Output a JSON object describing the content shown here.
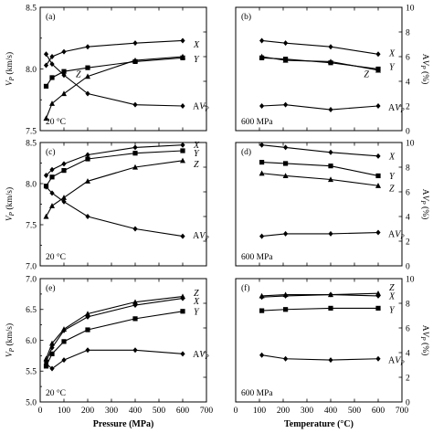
{
  "chart_data": [
    {
      "panel": "(a)",
      "type": "line",
      "note": "20 °C",
      "side": "left",
      "xlim": [
        0,
        700
      ],
      "ylim": [
        7.5,
        8.5
      ],
      "xticks": [
        0,
        100,
        200,
        300,
        400,
        500,
        600,
        700
      ],
      "xtick_labels": [],
      "yticks": [
        7.5,
        8.0,
        8.5
      ],
      "ytick_labels": [
        "7.5",
        "8.0",
        "8.5"
      ],
      "ylabel": "Vp (km/s)",
      "ylabel_sub": "P",
      "y2lim": [
        0,
        10
      ],
      "y2ticks": [
        0,
        2,
        4,
        6,
        8,
        10
      ],
      "y2tick_labels": [],
      "series": [
        {
          "name": "X",
          "marker": "diamond",
          "x": [
            25,
            50,
            100,
            200,
            400,
            600
          ],
          "y": [
            8.03,
            8.1,
            8.14,
            8.18,
            8.21,
            8.23
          ],
          "label_at": [
            8.2
          ]
        },
        {
          "name": "Y",
          "marker": "square",
          "x": [
            25,
            50,
            100,
            200,
            400,
            600
          ],
          "y": [
            7.86,
            7.93,
            7.98,
            8.01,
            8.06,
            8.09
          ],
          "label_at": [
            8.08
          ]
        },
        {
          "name": "Z",
          "marker": "triangle",
          "x": [
            25,
            50,
            100,
            200,
            400,
            600
          ],
          "y": [
            7.6,
            7.72,
            7.8,
            7.94,
            8.07,
            8.1
          ],
          "label_at": [
            7.96,
            150
          ]
        },
        {
          "name": "AVP",
          "marker": "diamond",
          "axis": "right",
          "x": [
            25,
            50,
            100,
            200,
            400,
            600
          ],
          "y": [
            6.2,
            5.4,
            4.5,
            3.0,
            2.1,
            2.0
          ],
          "label_at": [
            2.0
          ]
        }
      ]
    },
    {
      "panel": "(b)",
      "type": "line",
      "note": "600 MPa",
      "side": "right",
      "xlim": [
        0,
        700
      ],
      "ylim": [
        7.5,
        8.5
      ],
      "xticks": [
        0,
        100,
        200,
        300,
        400,
        500,
        600,
        700
      ],
      "xtick_labels": [],
      "y2lim": [
        0,
        10
      ],
      "y2ticks": [
        0,
        2,
        4,
        6,
        8,
        10
      ],
      "y2tick_labels": [
        "0",
        "2",
        "4",
        "6",
        "8",
        "10"
      ],
      "y2label": "AVp (%)",
      "series": [
        {
          "name": "X",
          "marker": "diamond",
          "x": [
            110,
            210,
            400,
            600
          ],
          "y": [
            8.23,
            8.21,
            8.18,
            8.12
          ],
          "label_at": [
            8.13
          ]
        },
        {
          "name": "Y",
          "marker": "square",
          "x": [
            110,
            210,
            400,
            600
          ],
          "y": [
            8.09,
            8.08,
            8.05,
            8.0
          ],
          "label_at": [
            8.02
          ]
        },
        {
          "name": "Z",
          "marker": "triangle",
          "x": [
            110,
            210,
            400,
            600
          ],
          "y": [
            8.1,
            8.07,
            8.06,
            7.99
          ],
          "label_at": [
            7.96,
            540
          ]
        },
        {
          "name": "AVP",
          "marker": "diamond",
          "axis": "right",
          "x": [
            110,
            210,
            400,
            600
          ],
          "y": [
            2.0,
            2.1,
            1.7,
            2.0
          ],
          "label_at": [
            1.9
          ]
        }
      ]
    },
    {
      "panel": "(c)",
      "type": "line",
      "note": "20 °C",
      "side": "left",
      "xlim": [
        0,
        700
      ],
      "ylim": [
        7.0,
        8.5
      ],
      "xticks": [
        0,
        100,
        200,
        300,
        400,
        500,
        600,
        700
      ],
      "xtick_labels": [],
      "yticks": [
        7.0,
        7.5,
        8.0,
        8.5
      ],
      "ytick_labels": [
        "7.0",
        "7.5",
        "8.0",
        "8.5"
      ],
      "ylabel": "Vp (km/s)",
      "ylabel_sub": "P",
      "y2lim": [
        0,
        10
      ],
      "y2ticks": [
        0,
        2,
        4,
        6,
        8,
        10
      ],
      "y2tick_labels": [],
      "series": [
        {
          "name": "X",
          "marker": "diamond",
          "x": [
            25,
            50,
            100,
            200,
            400,
            600
          ],
          "y": [
            8.1,
            8.17,
            8.24,
            8.35,
            8.44,
            8.47
          ],
          "label_at": [
            8.47
          ]
        },
        {
          "name": "Y",
          "marker": "square",
          "x": [
            25,
            50,
            100,
            200,
            400,
            600
          ],
          "y": [
            7.97,
            8.08,
            8.16,
            8.3,
            8.37,
            8.4
          ],
          "label_at": [
            8.37
          ]
        },
        {
          "name": "Z",
          "marker": "triangle",
          "x": [
            25,
            50,
            100,
            200,
            400,
            600
          ],
          "y": [
            7.6,
            7.73,
            7.83,
            8.03,
            8.2,
            8.28
          ],
          "label_at": [
            8.24
          ]
        },
        {
          "name": "AVP",
          "marker": "diamond",
          "axis": "right",
          "x": [
            25,
            50,
            100,
            200,
            400,
            600
          ],
          "y": [
            6.4,
            5.9,
            5.2,
            4.0,
            3.0,
            2.4
          ],
          "label_at": [
            2.5
          ]
        }
      ]
    },
    {
      "panel": "(d)",
      "type": "line",
      "note": "600 MPa",
      "side": "right",
      "xlim": [
        0,
        700
      ],
      "ylim": [
        7.0,
        8.5
      ],
      "xticks": [
        0,
        100,
        200,
        300,
        400,
        500,
        600,
        700
      ],
      "xtick_labels": [],
      "y2lim": [
        0,
        10
      ],
      "y2ticks": [
        0,
        2,
        4,
        6,
        8,
        10
      ],
      "y2tick_labels": [
        "0",
        "2",
        "4",
        "6",
        "8",
        "10"
      ],
      "y2label": "AVp (%)",
      "series": [
        {
          "name": "X",
          "marker": "diamond",
          "axis": "right",
          "x": [
            110,
            210,
            400,
            600
          ],
          "y": [
            9.8,
            9.6,
            9.2,
            8.9
          ],
          "label_at": [
            8.9
          ]
        },
        {
          "name": "Y",
          "marker": "square",
          "axis": "right",
          "x": [
            110,
            210,
            400,
            600
          ],
          "y": [
            8.4,
            8.3,
            8.1,
            7.3
          ],
          "label_at": [
            7.3
          ]
        },
        {
          "name": "Z",
          "marker": "triangle",
          "axis": "right",
          "x": [
            110,
            210,
            400,
            600
          ],
          "y": [
            7.5,
            7.3,
            7.0,
            6.5
          ],
          "label_at": [
            6.3
          ]
        },
        {
          "name": "AVP",
          "marker": "diamond",
          "axis": "right",
          "x": [
            110,
            210,
            400,
            600
          ],
          "y": [
            2.4,
            2.6,
            2.6,
            2.7
          ],
          "label_at": [
            2.6
          ]
        }
      ]
    },
    {
      "panel": "(e)",
      "type": "line",
      "note": "20 °C",
      "side": "left",
      "xlim": [
        0,
        700
      ],
      "ylim": [
        5.0,
        7.0
      ],
      "xticks": [
        0,
        100,
        200,
        300,
        400,
        500,
        600,
        700
      ],
      "xtick_labels": [
        "0",
        "100",
        "200",
        "300",
        "400",
        "500",
        "600",
        "700"
      ],
      "yticks": [
        5.0,
        5.5,
        6.0,
        6.5,
        7.0
      ],
      "ytick_labels": [
        "5.0",
        "5.5",
        "6.0",
        "6.5",
        "7.0"
      ],
      "ylabel": "Vp (km/s)",
      "ylabel_sub": "P",
      "xlabel": "Pressure (MPa)",
      "y2lim": [
        0,
        10
      ],
      "y2ticks": [
        0,
        2,
        4,
        6,
        8,
        10
      ],
      "y2tick_labels": [],
      "series": [
        {
          "name": "Z",
          "marker": "triangle",
          "x": [
            25,
            50,
            100,
            200,
            400,
            600
          ],
          "y": [
            5.7,
            5.95,
            6.18,
            6.43,
            6.62,
            6.71
          ],
          "label_at": [
            6.77
          ]
        },
        {
          "name": "X",
          "marker": "diamond",
          "x": [
            25,
            50,
            100,
            200,
            400,
            600
          ],
          "y": [
            5.65,
            5.88,
            6.16,
            6.38,
            6.57,
            6.68
          ],
          "label_at": [
            6.64
          ]
        },
        {
          "name": "Y",
          "marker": "square",
          "x": [
            25,
            50,
            100,
            200,
            400,
            600
          ],
          "y": [
            5.58,
            5.78,
            5.98,
            6.17,
            6.35,
            6.47
          ],
          "label_at": [
            6.47
          ]
        },
        {
          "name": "AVP",
          "marker": "diamond",
          "axis": "right",
          "x": [
            25,
            50,
            100,
            200,
            400,
            600
          ],
          "y": [
            3.1,
            2.7,
            3.4,
            4.2,
            4.2,
            3.9
          ],
          "label_at": [
            3.9
          ]
        }
      ]
    },
    {
      "panel": "(f)",
      "type": "line",
      "note": "600 MPa",
      "side": "right",
      "xlim": [
        0,
        700
      ],
      "ylim": [
        5.0,
        7.0
      ],
      "xticks": [
        0,
        100,
        200,
        300,
        400,
        500,
        600,
        700
      ],
      "xtick_labels": [
        "0",
        "100",
        "200",
        "300",
        "400",
        "500",
        "600",
        "700"
      ],
      "xlabel": "Temperature (°C)",
      "y2lim": [
        0,
        10
      ],
      "y2ticks": [
        0,
        2,
        4,
        6,
        8,
        10
      ],
      "y2tick_labels": [
        "0",
        "2",
        "4",
        "6",
        "8",
        "10"
      ],
      "y2label": "AVp (%)",
      "series": [
        {
          "name": "Z",
          "marker": "triangle",
          "axis": "right",
          "x": [
            110,
            210,
            400,
            600
          ],
          "y": [
            8.6,
            8.7,
            8.7,
            8.8
          ],
          "label_at": [
            9.3
          ]
        },
        {
          "name": "X",
          "marker": "diamond",
          "axis": "right",
          "x": [
            110,
            210,
            400,
            600
          ],
          "y": [
            8.5,
            8.6,
            8.7,
            8.6
          ],
          "label_at": [
            8.6
          ]
        },
        {
          "name": "Y",
          "marker": "square",
          "axis": "right",
          "x": [
            110,
            210,
            400,
            600
          ],
          "y": [
            7.4,
            7.5,
            7.6,
            7.6
          ],
          "label_at": [
            7.5
          ]
        },
        {
          "name": "AVP",
          "marker": "diamond",
          "axis": "right",
          "x": [
            110,
            210,
            400,
            600
          ],
          "y": [
            3.8,
            3.5,
            3.4,
            3.5
          ],
          "label_at": [
            3.4
          ]
        }
      ]
    }
  ]
}
